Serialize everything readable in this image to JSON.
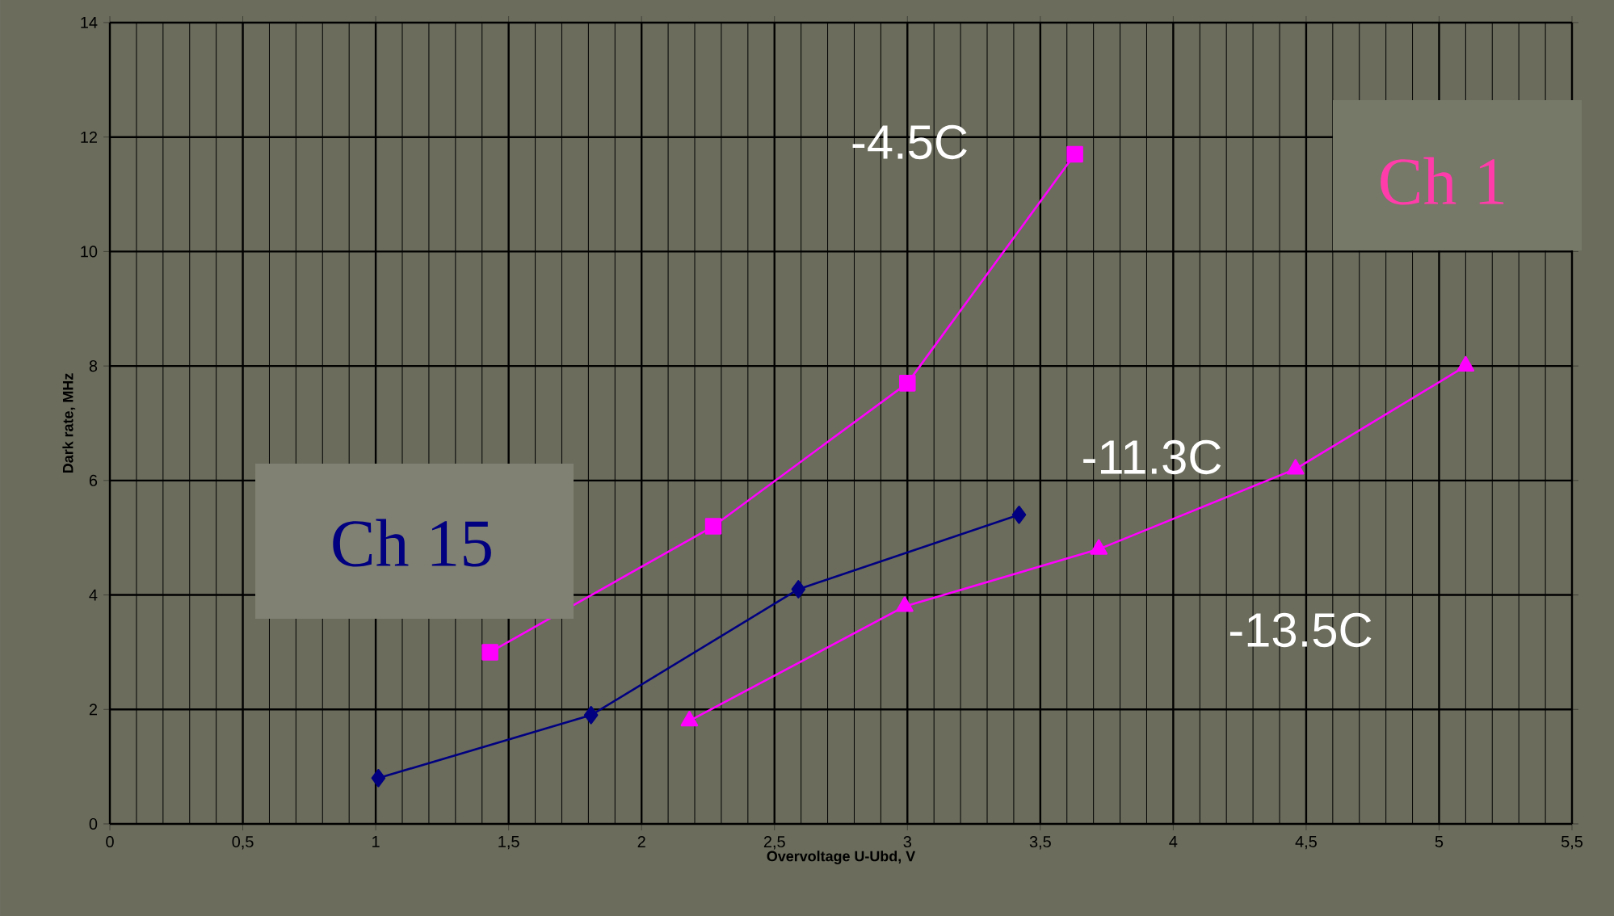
{
  "chart_data": {
    "type": "line",
    "xlabel": "Overvoltage U-Ubd, V",
    "ylabel": "Dark rate, MHz",
    "xlim": [
      0,
      5.5
    ],
    "ylim": [
      0,
      14
    ],
    "xticks": [
      0,
      {
        "value": 0.5,
        "label": "0,5"
      },
      1,
      {
        "value": 1.5,
        "label": "1,5"
      },
      2,
      {
        "value": 2.5,
        "label": "2,5"
      },
      3,
      {
        "value": 3.5,
        "label": "3,5"
      },
      4,
      {
        "value": 4.5,
        "label": "4,5"
      },
      5,
      {
        "value": 5.5,
        "label": "5,5"
      }
    ],
    "yticks": [
      0,
      2,
      4,
      6,
      8,
      10,
      12,
      14
    ],
    "grid": true,
    "series": [
      {
        "color": "#ff00ff",
        "marker": "square",
        "x": [
          1.43,
          2.27,
          3.0,
          3.63
        ],
        "values": [
          3.0,
          5.2,
          7.7,
          11.7
        ]
      },
      {
        "color": "#000080",
        "marker": "diamond",
        "x": [
          1.01,
          1.81,
          2.59,
          3.42
        ],
        "values": [
          0.8,
          1.9,
          4.1,
          5.4
        ]
      },
      {
        "color": "#ff00ff",
        "marker": "triangle",
        "x": [
          2.18,
          2.99,
          3.72,
          4.46,
          5.1
        ],
        "values": [
          1.8,
          3.8,
          4.8,
          6.2,
          8.0
        ]
      }
    ],
    "annotations": [
      "-4.5C",
      "-11.3C",
      "-13.5C",
      "Ch 15",
      "Ch 1"
    ]
  }
}
